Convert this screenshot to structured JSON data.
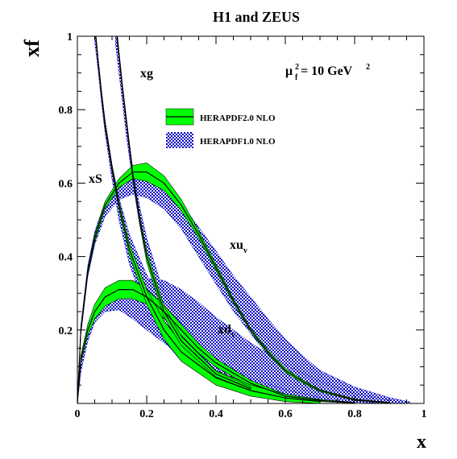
{
  "chart_data": {
    "type": "line",
    "title": "H1 and ZEUS",
    "ylabel": "xf",
    "xlabel": "x",
    "scale_label": "μ",
    "scale_sub": "f",
    "scale_sup": "2",
    "scale_value": " = 10 GeV",
    "scale_value_sup": "2",
    "xlim": [
      0,
      1
    ],
    "ylim": [
      0,
      1
    ],
    "x_ticks": [
      "0",
      "0.2",
      "0.4",
      "0.6",
      "0.8",
      "1"
    ],
    "y_ticks": [
      "0.2",
      "0.4",
      "0.6",
      "0.8",
      "1"
    ],
    "legend_position": "top-center",
    "legend": [
      {
        "name": "HERAPDF2.0 NLO",
        "style": "solid-band-with-line",
        "color": "#00ff00"
      },
      {
        "name": "HERAPDF1.0 NLO",
        "style": "hatched-band",
        "color": "#0000c8"
      }
    ],
    "curve_labels": [
      {
        "text": "xg",
        "sub": ""
      },
      {
        "text": "xS",
        "sub": ""
      },
      {
        "text": "xu",
        "sub": "v"
      },
      {
        "text": "xd",
        "sub": "v"
      }
    ],
    "series": [
      {
        "name": "xu_v",
        "set": "HERAPDF2.0 NLO",
        "x": [
          0.0,
          0.01,
          0.03,
          0.05,
          0.08,
          0.12,
          0.16,
          0.2,
          0.25,
          0.3,
          0.35,
          0.4,
          0.45,
          0.5,
          0.55,
          0.6,
          0.65,
          0.7,
          0.8,
          0.9
        ],
        "y": [
          0.0,
          0.2,
          0.36,
          0.45,
          0.54,
          0.6,
          0.63,
          0.63,
          0.6,
          0.54,
          0.46,
          0.37,
          0.28,
          0.2,
          0.14,
          0.09,
          0.06,
          0.035,
          0.01,
          0.002
        ],
        "err": [
          0.0,
          0.01,
          0.01,
          0.01,
          0.01,
          0.012,
          0.018,
          0.025,
          0.02,
          0.015,
          0.01,
          0.008,
          0.006,
          0.005,
          0.005,
          0.005,
          0.004,
          0.003,
          0.002,
          0.001
        ]
      },
      {
        "name": "xu_v",
        "set": "HERAPDF1.0 NLO",
        "x": [
          0.0,
          0.01,
          0.03,
          0.05,
          0.08,
          0.12,
          0.16,
          0.2,
          0.25,
          0.3,
          0.35,
          0.4,
          0.45,
          0.5,
          0.55,
          0.6,
          0.65,
          0.7,
          0.8,
          0.9,
          0.96
        ],
        "y": [
          0.0,
          0.2,
          0.36,
          0.45,
          0.53,
          0.58,
          0.6,
          0.59,
          0.56,
          0.51,
          0.44,
          0.37,
          0.3,
          0.24,
          0.18,
          0.13,
          0.09,
          0.06,
          0.025,
          0.008,
          0.002
        ],
        "err": [
          0.0,
          0.012,
          0.015,
          0.018,
          0.02,
          0.025,
          0.03,
          0.03,
          0.03,
          0.035,
          0.04,
          0.045,
          0.048,
          0.05,
          0.05,
          0.045,
          0.04,
          0.03,
          0.02,
          0.008,
          0.002
        ]
      },
      {
        "name": "xd_v",
        "set": "HERAPDF2.0 NLO",
        "x": [
          0.0,
          0.01,
          0.03,
          0.05,
          0.08,
          0.12,
          0.16,
          0.2,
          0.25,
          0.3,
          0.35,
          0.4,
          0.5,
          0.6,
          0.7,
          0.8
        ],
        "y": [
          0.0,
          0.12,
          0.2,
          0.25,
          0.29,
          0.31,
          0.31,
          0.29,
          0.25,
          0.2,
          0.15,
          0.11,
          0.055,
          0.02,
          0.008,
          0.002
        ],
        "err": [
          0.0,
          0.01,
          0.015,
          0.02,
          0.025,
          0.025,
          0.025,
          0.02,
          0.018,
          0.015,
          0.013,
          0.011,
          0.008,
          0.005,
          0.003,
          0.001
        ]
      },
      {
        "name": "xd_v",
        "set": "HERAPDF1.0 NLO",
        "x": [
          0.0,
          0.01,
          0.03,
          0.05,
          0.08,
          0.12,
          0.16,
          0.2,
          0.25,
          0.3,
          0.35,
          0.4,
          0.5,
          0.6,
          0.7,
          0.8,
          0.9
        ],
        "y": [
          0.0,
          0.1,
          0.19,
          0.24,
          0.27,
          0.28,
          0.28,
          0.27,
          0.25,
          0.22,
          0.19,
          0.16,
          0.11,
          0.065,
          0.035,
          0.015,
          0.004
        ],
        "err": [
          0.0,
          0.015,
          0.02,
          0.02,
          0.02,
          0.025,
          0.05,
          0.07,
          0.085,
          0.09,
          0.085,
          0.075,
          0.055,
          0.04,
          0.025,
          0.012,
          0.004
        ]
      },
      {
        "name": "xg",
        "set": "HERAPDF2.0 NLO",
        "x": [
          0.053,
          0.06,
          0.07,
          0.08,
          0.1,
          0.12,
          0.15,
          0.2,
          0.25,
          0.3,
          0.4,
          0.5,
          0.6,
          0.7
        ],
        "y": [
          1.0,
          0.93,
          0.84,
          0.76,
          0.64,
          0.54,
          0.42,
          0.29,
          0.2,
          0.14,
          0.07,
          0.035,
          0.015,
          0.005
        ],
        "err": [
          0.01,
          0.01,
          0.01,
          0.01,
          0.01,
          0.012,
          0.015,
          0.02,
          0.025,
          0.025,
          0.02,
          0.015,
          0.01,
          0.005
        ]
      },
      {
        "name": "xg",
        "set": "HERAPDF1.0 NLO",
        "x": [
          0.05,
          0.06,
          0.07,
          0.08,
          0.1,
          0.12,
          0.15,
          0.2,
          0.25,
          0.3,
          0.4,
          0.5,
          0.6,
          0.7
        ],
        "y": [
          1.0,
          0.92,
          0.83,
          0.75,
          0.63,
          0.53,
          0.42,
          0.3,
          0.22,
          0.16,
          0.09,
          0.05,
          0.025,
          0.01
        ],
        "err": [
          0.015,
          0.015,
          0.015,
          0.015,
          0.02,
          0.03,
          0.04,
          0.05,
          0.05,
          0.045,
          0.03,
          0.02,
          0.012,
          0.006
        ]
      },
      {
        "name": "xS",
        "set": "HERAPDF2.0 NLO",
        "x": [
          0.115,
          0.12,
          0.13,
          0.14,
          0.15,
          0.16,
          0.18,
          0.2,
          0.25,
          0.3,
          0.4,
          0.5
        ],
        "y": [
          1.0,
          0.95,
          0.86,
          0.78,
          0.7,
          0.62,
          0.5,
          0.4,
          0.25,
          0.17,
          0.08,
          0.04
        ],
        "err": [
          0.01,
          0.01,
          0.01,
          0.01,
          0.01,
          0.01,
          0.012,
          0.015,
          0.015,
          0.012,
          0.008,
          0.005
        ]
      },
      {
        "name": "xS",
        "set": "HERAPDF1.0 NLO",
        "x": [
          0.11,
          0.12,
          0.13,
          0.14,
          0.15,
          0.16,
          0.18,
          0.2,
          0.25,
          0.3,
          0.4,
          0.5
        ],
        "y": [
          1.0,
          0.92,
          0.84,
          0.76,
          0.69,
          0.62,
          0.51,
          0.42,
          0.27,
          0.19,
          0.1,
          0.05
        ],
        "err": [
          0.02,
          0.02,
          0.02,
          0.02,
          0.02,
          0.02,
          0.025,
          0.03,
          0.03,
          0.025,
          0.018,
          0.01
        ]
      }
    ]
  }
}
